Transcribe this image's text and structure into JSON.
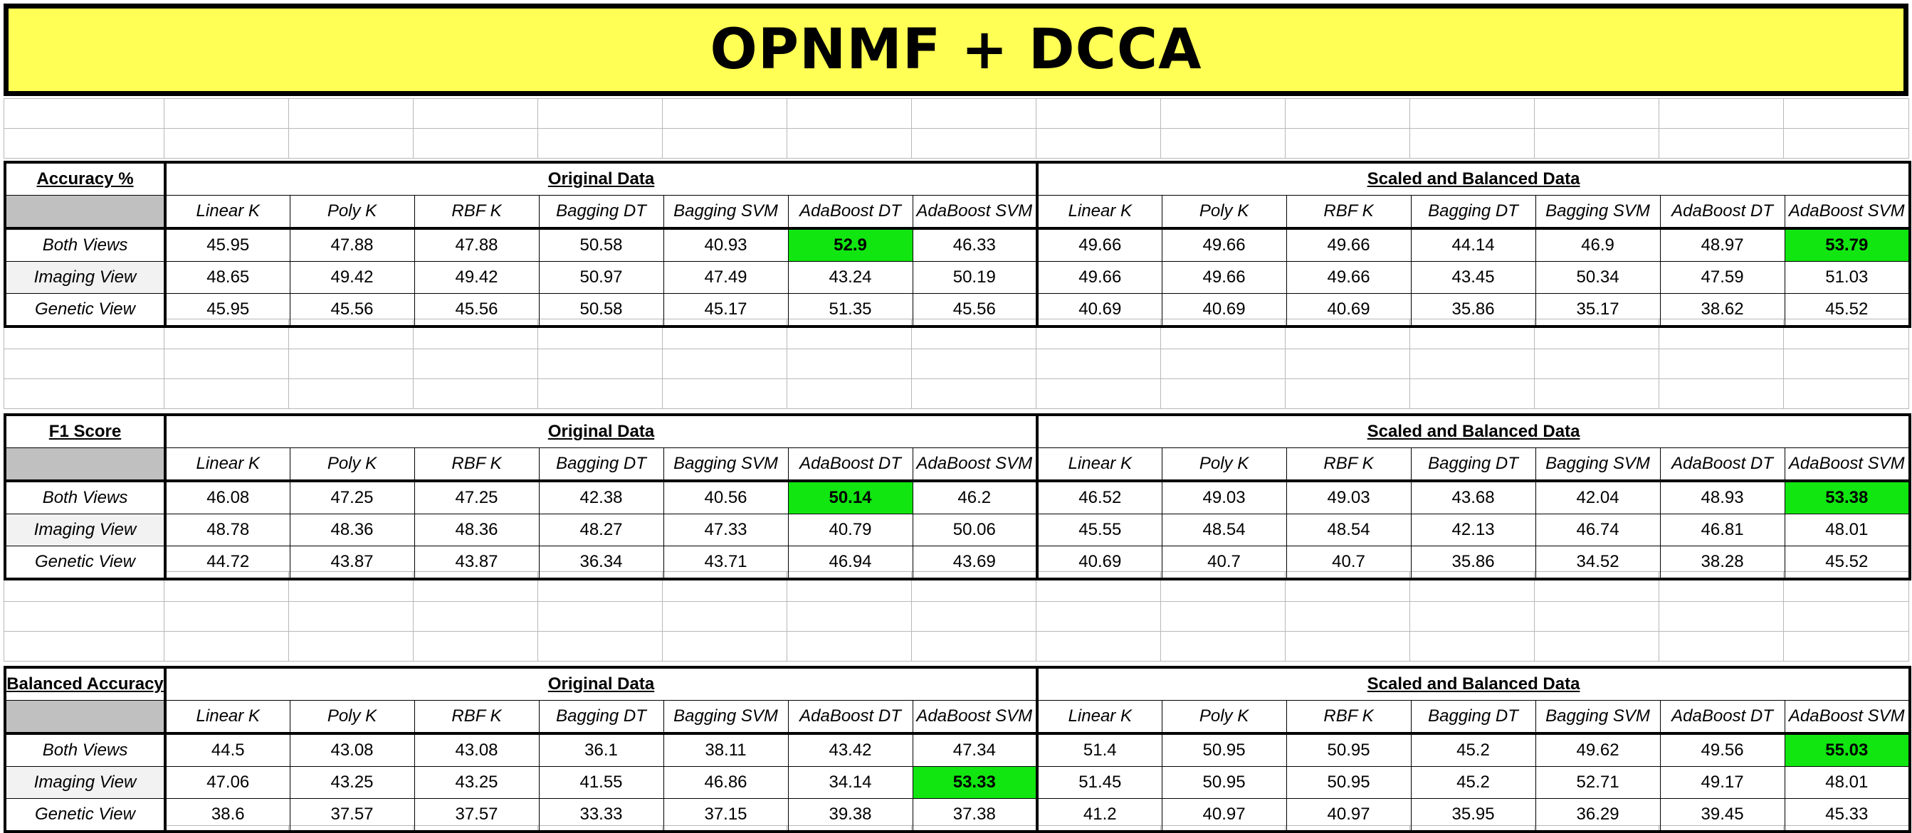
{
  "title": "OPNMF + DCCA",
  "group_labels": [
    "Original Data",
    "Scaled and Balanced Data"
  ],
  "column_headers": [
    "Linear K",
    "Poly K",
    "RBF K",
    "Bagging DT",
    "Bagging SVM",
    "AdaBoost DT",
    "AdaBoost SVM",
    "Linear K",
    "Poly K",
    "RBF K",
    "Bagging DT",
    "Bagging SVM",
    "AdaBoost DT",
    "AdaBoost SVM"
  ],
  "row_labels": [
    "Both Views",
    "Imaging View",
    "Genetic View"
  ],
  "highlight_color": "#11e611",
  "title_background": "#ffff55",
  "tables": [
    {
      "metric": "Accuracy %",
      "rows": [
        {
          "cells": [
            "45.95",
            "47.88",
            "47.88",
            "50.58",
            "40.93",
            "52.9",
            "46.33",
            "49.66",
            "49.66",
            "49.66",
            "44.14",
            "46.9",
            "48.97",
            "53.79"
          ],
          "highlight": [
            5,
            13
          ]
        },
        {
          "cells": [
            "48.65",
            "49.42",
            "49.42",
            "50.97",
            "47.49",
            "43.24",
            "50.19",
            "49.66",
            "49.66",
            "49.66",
            "43.45",
            "50.34",
            "47.59",
            "51.03"
          ],
          "highlight": []
        },
        {
          "cells": [
            "45.95",
            "45.56",
            "45.56",
            "50.58",
            "45.17",
            "51.35",
            "45.56",
            "40.69",
            "40.69",
            "40.69",
            "35.86",
            "35.17",
            "38.62",
            "45.52"
          ],
          "highlight": []
        }
      ]
    },
    {
      "metric": "F1 Score",
      "rows": [
        {
          "cells": [
            "46.08",
            "47.25",
            "47.25",
            "42.38",
            "40.56",
            "50.14",
            "46.2",
            "46.52",
            "49.03",
            "49.03",
            "43.68",
            "42.04",
            "48.93",
            "53.38"
          ],
          "highlight": [
            5,
            13
          ]
        },
        {
          "cells": [
            "48.78",
            "48.36",
            "48.36",
            "48.27",
            "47.33",
            "40.79",
            "50.06",
            "45.55",
            "48.54",
            "48.54",
            "42.13",
            "46.74",
            "46.81",
            "48.01"
          ],
          "highlight": []
        },
        {
          "cells": [
            "44.72",
            "43.87",
            "43.87",
            "36.34",
            "43.71",
            "46.94",
            "43.69",
            "40.69",
            "40.7",
            "40.7",
            "35.86",
            "34.52",
            "38.28",
            "45.52"
          ],
          "highlight": []
        }
      ]
    },
    {
      "metric": "Balanced Accuracy",
      "rows": [
        {
          "cells": [
            "44.5",
            "43.08",
            "43.08",
            "36.1",
            "38.11",
            "43.42",
            "47.34",
            "51.4",
            "50.95",
            "50.95",
            "45.2",
            "49.62",
            "49.56",
            "55.03"
          ],
          "highlight": [
            13
          ]
        },
        {
          "cells": [
            "47.06",
            "43.25",
            "43.25",
            "41.55",
            "46.86",
            "34.14",
            "53.33",
            "51.45",
            "50.95",
            "50.95",
            "45.2",
            "52.71",
            "49.17",
            "48.01"
          ],
          "highlight": [
            6
          ]
        },
        {
          "cells": [
            "38.6",
            "37.57",
            "37.57",
            "33.33",
            "37.15",
            "39.38",
            "37.38",
            "41.2",
            "40.97",
            "40.97",
            "35.95",
            "36.29",
            "39.45",
            "45.33"
          ],
          "highlight": []
        }
      ]
    }
  ]
}
